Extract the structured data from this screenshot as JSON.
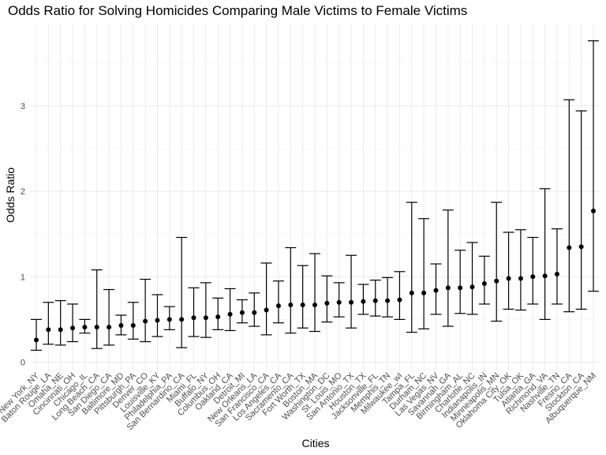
{
  "chart_data": {
    "type": "scatter",
    "title": "Odds Ratio for Solving Homicides Comparing Male Victims to Female Victims",
    "xlabel": "Cities",
    "ylabel": "Odds Ratio",
    "ylim": [
      0,
      3.9
    ],
    "yticks": [
      0,
      1,
      2,
      3
    ],
    "grid": true,
    "categories": [
      "New York_NY",
      "Baton Rouge_LA",
      "Omaha_NE",
      "Cincinnati_OH",
      "Chicago_IL",
      "Long Beach_CA",
      "San Diego_CA",
      "Baltimore_MD",
      "Pittsburgh_PA",
      "Denver_CO",
      "Louisville_KY",
      "Philadelphia_PA",
      "San Bernardino_CA",
      "Miami_FL",
      "Buffalo_NY",
      "Columbus_OH",
      "Oakland_CA",
      "Detroit_MI",
      "New Orleans_LA",
      "San Francisco_CA",
      "Los Angeles_CA",
      "Sacramento_CA",
      "Fort Worth_TX",
      "Boston_MA",
      "Washington_DC",
      "St. Louis_MO",
      "San Antonio_TX",
      "Houston_TX",
      "Jacksonville_FL",
      "Memphis_TN",
      "Milwaukee_wI",
      "Tampa_FL",
      "Durham_NC",
      "Las Vegas_NV",
      "Savannah_GA",
      "Birmingham_AL",
      "Charlotte_NC",
      "Indianapolis_IN",
      "Minneapolis_MN",
      "Oklahoma City_OK",
      "Tulsa_OK",
      "Atlanta_GA",
      "Richmond_VA",
      "Nashville_TN",
      "Fresno_CA",
      "Stockton_CA",
      "Albuquerque_NM"
    ],
    "series": [
      {
        "estimate": [
          0.26,
          0.38,
          0.38,
          0.4,
          0.41,
          0.41,
          0.41,
          0.43,
          0.43,
          0.48,
          0.49,
          0.5,
          0.5,
          0.52,
          0.52,
          0.53,
          0.56,
          0.58,
          0.58,
          0.61,
          0.66,
          0.67,
          0.67,
          0.67,
          0.69,
          0.7,
          0.7,
          0.71,
          0.72,
          0.72,
          0.73,
          0.81,
          0.81,
          0.84,
          0.87,
          0.87,
          0.88,
          0.92,
          0.95,
          0.98,
          0.98,
          1.0,
          1.01,
          1.03,
          1.34,
          1.35,
          1.77
        ],
        "ci_lower": [
          0.14,
          0.21,
          0.2,
          0.24,
          0.34,
          0.16,
          0.2,
          0.32,
          0.27,
          0.24,
          0.3,
          0.38,
          0.17,
          0.3,
          0.29,
          0.38,
          0.37,
          0.46,
          0.42,
          0.32,
          0.46,
          0.34,
          0.4,
          0.36,
          0.47,
          0.53,
          0.4,
          0.56,
          0.54,
          0.53,
          0.5,
          0.35,
          0.39,
          0.56,
          0.42,
          0.57,
          0.56,
          0.68,
          0.48,
          0.62,
          0.61,
          0.68,
          0.5,
          0.68,
          0.59,
          0.62,
          0.83
        ],
        "ci_upper": [
          0.5,
          0.7,
          0.72,
          0.68,
          0.5,
          1.08,
          0.85,
          0.55,
          0.7,
          0.97,
          0.79,
          0.65,
          1.46,
          0.87,
          0.93,
          0.75,
          0.86,
          0.73,
          0.81,
          1.16,
          0.95,
          1.34,
          1.13,
          1.27,
          1.01,
          0.93,
          1.25,
          0.91,
          0.96,
          0.99,
          1.06,
          1.87,
          1.68,
          1.15,
          1.78,
          1.31,
          1.4,
          1.24,
          1.87,
          1.52,
          1.55,
          1.46,
          2.03,
          1.56,
          3.07,
          2.94,
          3.76
        ]
      }
    ]
  }
}
